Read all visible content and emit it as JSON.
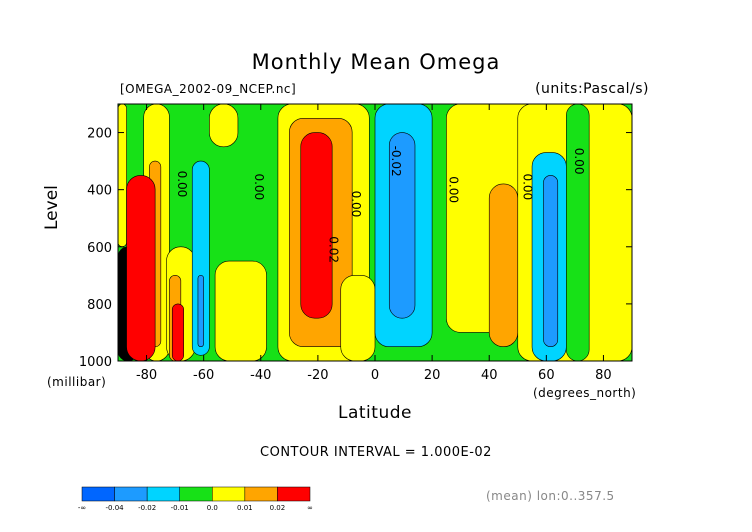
{
  "chart_data": {
    "type": "heatmap",
    "title": "Monthly Mean Omega",
    "file_label": "[OMEGA_2002-09_NCEP.nc]",
    "units_label": "(units:Pascal/s)",
    "xlabel": "Latitude",
    "x_units": "(degrees_north)",
    "ylabel": "Level",
    "y_units": "(millibar)",
    "xlim": [
      -90,
      90
    ],
    "ylim": [
      1000,
      100
    ],
    "x_ticks": [
      "-80",
      "-60",
      "-40",
      "-20",
      "0",
      "20",
      "40",
      "60",
      "80"
    ],
    "y_ticks": [
      "200",
      "400",
      "600",
      "800",
      "1000"
    ],
    "contour_interval": "CONTOUR INTERVAL = 1.000E-02",
    "mean_info": "(mean) lon:0..357.5",
    "contour_labels": [
      {
        "text": "0.00",
        "lat": -69,
        "lev": 380
      },
      {
        "text": "0.00",
        "lat": -42,
        "lev": 390
      },
      {
        "text": "0.00",
        "lat": -8,
        "lev": 450
      },
      {
        "text": "0.02",
        "lat": -16,
        "lev": 610
      },
      {
        "text": "-0.02",
        "lat": 6,
        "lev": 300
      },
      {
        "text": "0.00",
        "lat": 26,
        "lev": 400
      },
      {
        "text": "0.00",
        "lat": 52,
        "lev": 390
      },
      {
        "text": "0.00",
        "lat": 70,
        "lev": 300
      }
    ],
    "colorbar": {
      "colors": [
        "#0066ff",
        "#1d9bff",
        "#00d4ff",
        "#17e117",
        "#ffff00",
        "#ffa500",
        "#ff0000"
      ],
      "labels": [
        "-∞",
        "-0.04",
        "-0.02",
        "-0.01",
        "0.0",
        "0.01",
        "0.02",
        "∞"
      ]
    },
    "bands": [
      {
        "category": "positive_weak",
        "lat": [
          -90,
          -87
        ],
        "lev": [
          100,
          600
        ]
      },
      {
        "category": "negative_weak",
        "lat": [
          -90,
          -83
        ],
        "lev": [
          600,
          1000
        ]
      },
      {
        "category": "positive_weak",
        "lat": [
          -81,
          -72
        ],
        "lev": [
          100,
          1000
        ]
      },
      {
        "category": "positive_mid",
        "lat": [
          -79,
          -75
        ],
        "lev": [
          300,
          950
        ]
      },
      {
        "category": "positive_strong",
        "lat": [
          -87,
          -77
        ],
        "lev": [
          350,
          1000
        ]
      },
      {
        "category": "positive_weak",
        "lat": [
          -73,
          -63
        ],
        "lev": [
          600,
          1000
        ]
      },
      {
        "category": "positive_mid",
        "lat": [
          -72,
          -68
        ],
        "lev": [
          700,
          1000
        ]
      },
      {
        "category": "positive_strong",
        "lat": [
          -71,
          -67
        ],
        "lev": [
          800,
          1000
        ]
      },
      {
        "category": "negative_mid",
        "lat": [
          -64,
          -58
        ],
        "lev": [
          300,
          980
        ]
      },
      {
        "category": "negative_strong",
        "lat": [
          -62,
          -60
        ],
        "lev": [
          700,
          950
        ]
      },
      {
        "category": "positive_weak",
        "lat": [
          -58,
          -48
        ],
        "lev": [
          100,
          250
        ]
      },
      {
        "category": "positive_weak",
        "lat": [
          -56,
          -38
        ],
        "lev": [
          650,
          1000
        ]
      },
      {
        "category": "positive_weak",
        "lat": [
          -34,
          -2
        ],
        "lev": [
          100,
          1000
        ]
      },
      {
        "category": "positive_mid",
        "lat": [
          -30,
          -8
        ],
        "lev": [
          150,
          950
        ]
      },
      {
        "category": "positive_strong",
        "lat": [
          -26,
          -15
        ],
        "lev": [
          200,
          850
        ]
      },
      {
        "category": "positive_weak",
        "lat": [
          -12,
          0
        ],
        "lev": [
          700,
          1000
        ]
      },
      {
        "category": "negative_mid",
        "lat": [
          0,
          20
        ],
        "lev": [
          100,
          950
        ]
      },
      {
        "category": "negative_strong",
        "lat": [
          5,
          14
        ],
        "lev": [
          200,
          850
        ]
      },
      {
        "category": "positive_weak",
        "lat": [
          25,
          57
        ],
        "lev": [
          100,
          900
        ]
      },
      {
        "category": "positive_mid",
        "lat": [
          40,
          50
        ],
        "lev": [
          380,
          950
        ]
      },
      {
        "category": "positive_weak",
        "lat": [
          50,
          90
        ],
        "lev": [
          100,
          1000
        ]
      },
      {
        "category": "negative_mid",
        "lat": [
          55,
          67
        ],
        "lev": [
          270,
          1000
        ]
      },
      {
        "category": "negative_strong",
        "lat": [
          59,
          64
        ],
        "lev": [
          350,
          950
        ]
      },
      {
        "category": "neutral",
        "lat": [
          67,
          75
        ],
        "lev": [
          100,
          1000
        ]
      }
    ]
  }
}
